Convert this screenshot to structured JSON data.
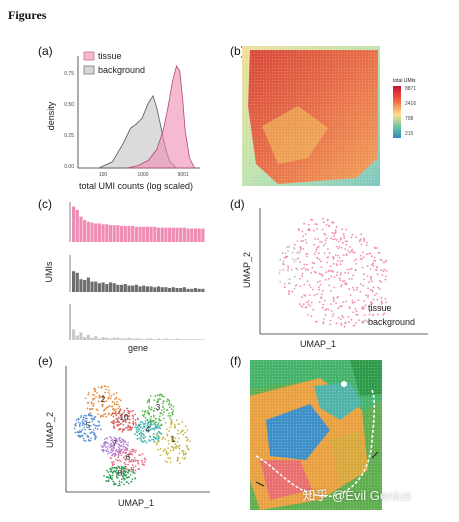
{
  "figure_title": "Figures",
  "panels": {
    "a": {
      "label": "(a)",
      "legend": [
        "tissue",
        "background"
      ],
      "ylabel": "density",
      "xlabel": "total UMI counts (log scaled)",
      "yticks": [
        "0.00",
        "0.25",
        "0.50",
        "0.75"
      ],
      "xticks": [
        "100",
        "1000",
        "9001"
      ]
    },
    "b": {
      "label": "(b)",
      "colorbar_title": "total UMIs",
      "colorbar_ticks": [
        "8871",
        "2416",
        "708",
        "215"
      ]
    },
    "c": {
      "label": "(c)",
      "ylabel": "UMIs",
      "xlabel": "gene"
    },
    "d": {
      "label": "(d)",
      "xlabel": "UMAP_1",
      "ylabel": "UMAP_2",
      "legend": [
        "tissue",
        "background"
      ]
    },
    "e": {
      "label": "(e)",
      "xlabel": "UMAP_1",
      "ylabel": "UMAP_2",
      "cluster_labels": [
        "1",
        "2",
        "3",
        "4",
        "5",
        "6",
        "7",
        "8",
        "10"
      ]
    },
    "f": {
      "label": "(f)"
    }
  },
  "watermark": "知乎 @Evil Genius",
  "colors": {
    "tissue": "#f08bb4",
    "background": "#bdbdbd",
    "bar_dark": "#6e6e6e",
    "bar_light": "#c8c8c8"
  },
  "chart_data": [
    {
      "panel": "a",
      "type": "area",
      "x_scale": "log",
      "xlim": [
        30,
        9001
      ],
      "ylim": [
        0,
        0.9
      ],
      "series": [
        {
          "name": "tissue",
          "x": [
            300,
            500,
            800,
            1200,
            1600,
            2000,
            2500,
            3000,
            3500,
            4000,
            4500,
            5500,
            7000
          ],
          "y": [
            0.0,
            0.02,
            0.06,
            0.15,
            0.3,
            0.48,
            0.7,
            0.82,
            0.78,
            0.55,
            0.3,
            0.08,
            0.0
          ]
        },
        {
          "name": "background",
          "x": [
            80,
            150,
            250,
            350,
            450,
            600,
            800,
            1000,
            1200,
            1500,
            1800,
            2200,
            3000
          ],
          "y": [
            0.0,
            0.05,
            0.2,
            0.32,
            0.35,
            0.4,
            0.52,
            0.58,
            0.48,
            0.3,
            0.15,
            0.05,
            0.0
          ]
        }
      ]
    },
    {
      "panel": "c",
      "type": "bar",
      "series": [
        {
          "name": "tissue",
          "values": [
            42,
            38,
            30,
            26,
            24,
            23,
            22,
            22,
            21,
            21,
            20,
            20,
            20,
            19,
            19,
            19,
            19,
            18,
            18,
            18,
            18,
            18,
            18,
            17,
            17,
            17,
            17,
            17,
            17,
            17,
            17,
            16,
            16,
            16,
            16,
            16
          ]
        },
        {
          "name": "background",
          "values": [
            26,
            24,
            16,
            15,
            18,
            13,
            13,
            11,
            12,
            10,
            12,
            11,
            9,
            9,
            10,
            8,
            8,
            9,
            7,
            8,
            7,
            7,
            6,
            7,
            6,
            6,
            5,
            6,
            5,
            5,
            6,
            4,
            4,
            5,
            4,
            4
          ]
        },
        {
          "name": "background-light",
          "values": [
            14,
            6,
            10,
            4,
            7,
            3,
            5,
            2,
            4,
            3,
            2,
            3,
            3,
            2,
            2,
            3,
            2,
            2,
            2,
            1,
            2,
            2,
            1,
            2,
            1,
            2,
            1,
            1,
            2,
            1,
            1,
            1,
            1,
            1,
            1,
            1
          ]
        }
      ]
    }
  ]
}
